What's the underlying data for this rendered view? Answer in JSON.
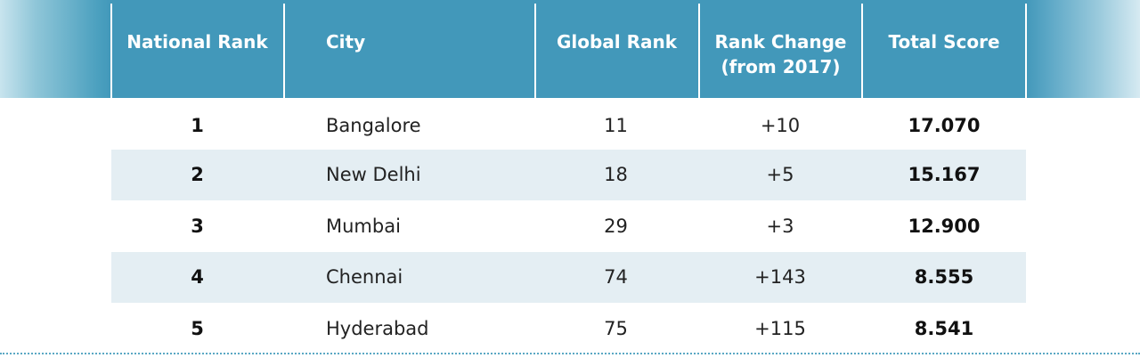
{
  "table": {
    "headers": {
      "national_rank": "National Rank",
      "city": "City",
      "global_rank": "Global Rank",
      "rank_change_line1": "Rank Change",
      "rank_change_line2": "(from 2017)",
      "total_score": "Total Score"
    },
    "rows": [
      {
        "national_rank": "1",
        "city": "Bangalore",
        "global_rank": "11",
        "rank_change": "+10",
        "total_score": "17.070"
      },
      {
        "national_rank": "2",
        "city": "New Delhi",
        "global_rank": "18",
        "rank_change": "+5",
        "total_score": "15.167"
      },
      {
        "national_rank": "3",
        "city": "Mumbai",
        "global_rank": "29",
        "rank_change": "+3",
        "total_score": "12.900"
      },
      {
        "national_rank": "4",
        "city": "Chennai",
        "global_rank": "74",
        "rank_change": "+143",
        "total_score": "8.555"
      },
      {
        "national_rank": "5",
        "city": "Hyderabad",
        "global_rank": "75",
        "rank_change": "+115",
        "total_score": "8.541"
      }
    ]
  },
  "colors": {
    "header_bg": "#4298ba",
    "row_shade": "#e4eef3",
    "divider": "#ffffff",
    "dotted_rule": "#5aa8c4"
  }
}
